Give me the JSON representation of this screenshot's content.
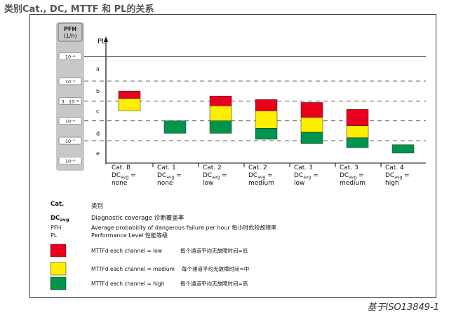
{
  "header": {
    "title": "类别Cat., DC, MTTF 和 PL的关系"
  },
  "pfh_axis": {
    "label_line1": "PFH",
    "label_line2": "(1/h)",
    "ticks": [
      "10⁻⁴",
      "10⁻⁵",
      "3 · 10⁻⁶",
      "10⁻⁶",
      "10⁻⁷",
      "10⁻⁸"
    ]
  },
  "pl_axis": {
    "label": "PL",
    "levels": [
      "a",
      "b",
      "c",
      "d",
      "e"
    ]
  },
  "categories": [
    {
      "cat": "Cat. B",
      "dc_prefix": "DC",
      "dc_sub": "avg",
      "dc_eq": " =",
      "dc_value": "none",
      "segments": [
        {
          "color": "red",
          "from": 11,
          "to": 12.5
        },
        {
          "color": "yellow",
          "from": 12.5,
          "to": 15
        }
      ]
    },
    {
      "cat": "Cat. 1",
      "dc_prefix": "DC",
      "dc_sub": "avg",
      "dc_eq": " =",
      "dc_value": "none",
      "segments": [
        {
          "color": "green",
          "from": 17,
          "to": 19.5
        }
      ]
    },
    {
      "cat": "Cat. 2",
      "dc_prefix": "DC",
      "dc_sub": "avg",
      "dc_eq": " =",
      "dc_value": "low",
      "segments": [
        {
          "color": "red",
          "from": 12,
          "to": 14
        },
        {
          "color": "yellow",
          "from": 14,
          "to": 17
        },
        {
          "color": "green",
          "from": 17,
          "to": 19.5
        }
      ]
    },
    {
      "cat": "Cat. 2",
      "dc_prefix": "DC",
      "dc_sub": "avg",
      "dc_eq": " =",
      "dc_value": "medium",
      "segments": [
        {
          "color": "red",
          "from": 12.7,
          "to": 15
        },
        {
          "color": "yellow",
          "from": 15,
          "to": 18.5
        },
        {
          "color": "green",
          "from": 18.5,
          "to": 20.7
        }
      ]
    },
    {
      "cat": "Cat. 3",
      "dc_prefix": "DC",
      "dc_sub": "avg",
      "dc_eq": " =",
      "dc_value": "low",
      "segments": [
        {
          "color": "red",
          "from": 13.3,
          "to": 16.3
        },
        {
          "color": "yellow",
          "from": 16.3,
          "to": 19.3
        },
        {
          "color": "green",
          "from": 19.3,
          "to": 21.6
        }
      ]
    },
    {
      "cat": "Cat. 3",
      "dc_prefix": "DC",
      "dc_sub": "avg",
      "dc_eq": " =",
      "dc_value": "medium",
      "segments": [
        {
          "color": "red",
          "from": 14.7,
          "to": 18
        },
        {
          "color": "yellow",
          "from": 18,
          "to": 20.4
        },
        {
          "color": "green",
          "from": 20.4,
          "to": 22.4
        }
      ]
    },
    {
      "cat": "Cat. 4",
      "dc_prefix": "DC",
      "dc_sub": "avg",
      "dc_eq": " =",
      "dc_value": "high",
      "segments": [
        {
          "color": "green",
          "from": 21.8,
          "to": 23.5
        }
      ]
    }
  ],
  "colors": {
    "red": "#e8001c",
    "yellow": "#ffee00",
    "green": "#00954a",
    "axis_pill": "#c8c8c8"
  },
  "legend": {
    "cat_key": "Cat.",
    "cat_desc": "类别",
    "dc_key": "DC",
    "dc_key_sub": "avg",
    "dc_desc": "Diagnostic coverage 诊断覆盖率",
    "pfh_key": "PFH",
    "pfh_desc": "Average probability of dangerous failure per hour 每小时危险故障率",
    "pl_key": "PL",
    "pl_desc": "Performance Level  性能等级",
    "swatches": [
      {
        "color": "red",
        "label": "MTTFd each channel = low",
        "desc": "每个通道平均无故障时间=低"
      },
      {
        "color": "yellow",
        "label": "MTTFd each channel = medium",
        "desc": "每个通道平均无故障时间=中"
      },
      {
        "color": "green",
        "label": "MTTFd each channel = high",
        "desc": "每个通道平均无故障时间=高"
      }
    ]
  },
  "source": "基于ISO13849-1"
}
